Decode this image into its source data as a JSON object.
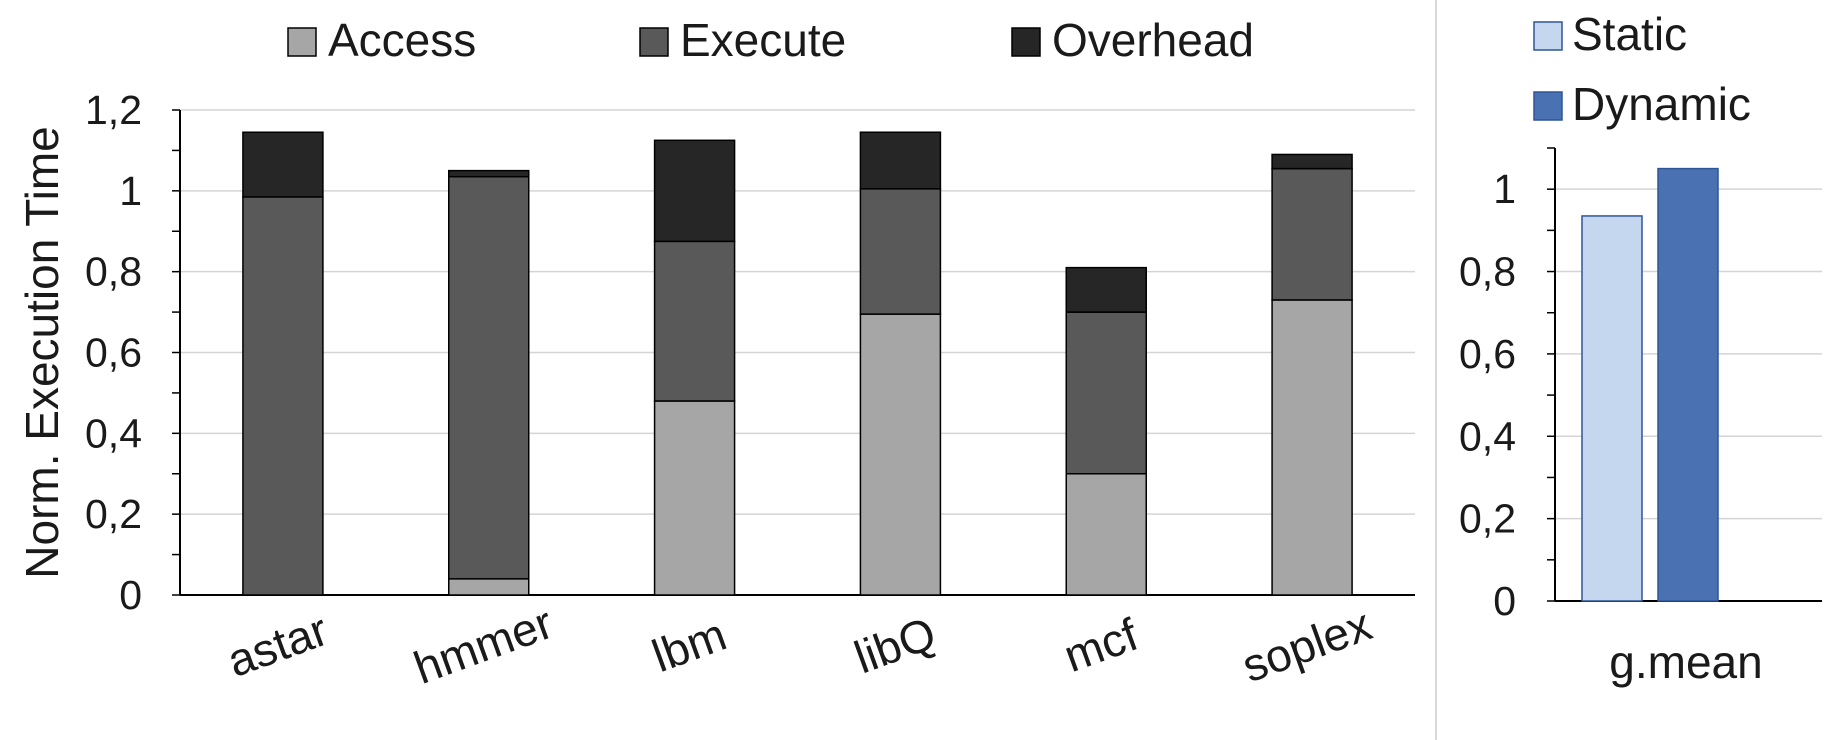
{
  "chart_data": [
    {
      "type": "bar",
      "stacked": true,
      "categories": [
        "astar",
        "hmmer",
        "lbm",
        "libQ",
        "mcf",
        "soplex"
      ],
      "series": [
        {
          "name": "Access",
          "color": "#a6a6a6",
          "values": [
            0.0,
            0.04,
            0.48,
            0.695,
            0.3,
            0.73
          ]
        },
        {
          "name": "Execute",
          "color": "#595959",
          "values": [
            0.985,
            0.995,
            0.395,
            0.31,
            0.4,
            0.325
          ]
        },
        {
          "name": "Overhead",
          "color": "#262626",
          "values": [
            0.16,
            0.015,
            0.25,
            0.14,
            0.11,
            0.035
          ]
        }
      ],
      "ylabel": "Norm. Execution Time",
      "ylim": [
        0,
        1.2
      ],
      "yticks": [
        "0",
        "0,2",
        "0,4",
        "0,6",
        "0,8",
        "1",
        "1,2"
      ],
      "grid": true,
      "legend": "top"
    },
    {
      "type": "bar",
      "categories": [
        "g.mean"
      ],
      "series": [
        {
          "name": "Static",
          "color": "#c5d7ee",
          "values": [
            0.935
          ]
        },
        {
          "name": "Dynamic",
          "color": "#4a72b3",
          "values": [
            1.05
          ]
        }
      ],
      "ylim": [
        0,
        1.1
      ],
      "yticks": [
        "0",
        "0,2",
        "0,4",
        "0,6",
        "0,8",
        "1"
      ],
      "grid": true,
      "legend": "top-left"
    }
  ]
}
